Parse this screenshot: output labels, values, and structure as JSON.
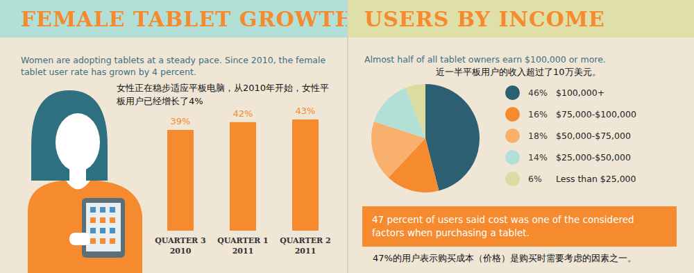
{
  "chart_data": [
    {
      "type": "bar",
      "title": "FEMALE TABLET GROWTH",
      "subtitle": "Women are adopting tablets at a steady pace. Since 2010, the female tablet user rate has grown by 4 percent.",
      "annotations": [
        "女性正在稳步适应平板电脑，从2010年开始，女性平板用户已经增长了4%"
      ],
      "categories": [
        "QUARTER 3 2010",
        "QUARTER 1 2011",
        "QUARTER 2 2011"
      ],
      "values": [
        39,
        42,
        43
      ],
      "value_labels": [
        "39%",
        "42%",
        "43%"
      ],
      "data_labels": true,
      "color": "#f58a2e",
      "ylim": [
        0,
        43
      ],
      "tick_labels": "x",
      "grid": false
    },
    {
      "type": "pie",
      "title": "USERS BY INCOME",
      "subtitle": "Almost half of all tablet owners earn $100,000 or more.",
      "annotations": [
        "近一半平板用户的收入超过了10万美元。",
        "47 percent of users said cost was one of the considered factors when purchasing a tablet.",
        "47%的用户表示购买成本（价格）是购买时需要考虑的因素之一。"
      ],
      "categories": [
        "$100,000+",
        "$75,000-$100,000",
        "$50,000-$75,000",
        "$25,000-$50,000",
        "Less than $25,000"
      ],
      "values": [
        46,
        16,
        18,
        14,
        6
      ],
      "value_labels": [
        "46%",
        "16%",
        "18%",
        "14%",
        "6%"
      ],
      "colors": [
        "#2c5f72",
        "#f58a2e",
        "#f8b06c",
        "#b3e0d6",
        "#dcdca2"
      ],
      "legend": "right"
    }
  ]
}
